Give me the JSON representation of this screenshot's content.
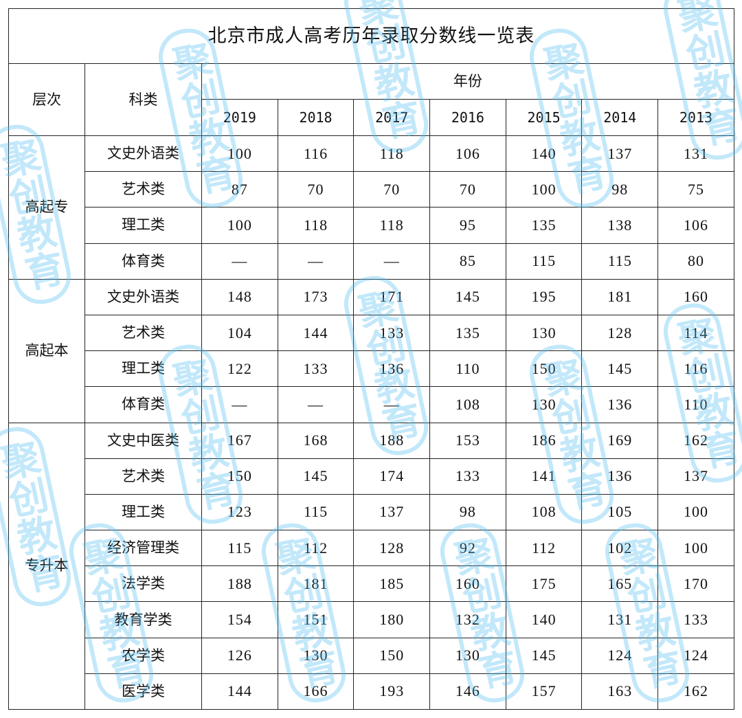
{
  "title": "北京市成人高考历年录取分数线一览表",
  "headers": {
    "level": "层次",
    "category": "科类",
    "year_group": "年份"
  },
  "years": [
    "2019",
    "2018",
    "2017",
    "2016",
    "2015",
    "2014",
    "2013"
  ],
  "groups": [
    {
      "level": "高起专",
      "rows": [
        {
          "category": "文史外语类",
          "scores": [
            "100",
            "116",
            "118",
            "106",
            "140",
            "137",
            "131"
          ]
        },
        {
          "category": "艺术类",
          "scores": [
            "87",
            "70",
            "70",
            "70",
            "100",
            "98",
            "75"
          ]
        },
        {
          "category": "理工类",
          "scores": [
            "100",
            "118",
            "118",
            "95",
            "135",
            "138",
            "106"
          ]
        },
        {
          "category": "体育类",
          "scores": [
            "—",
            "—",
            "—",
            "85",
            "115",
            "115",
            "80"
          ]
        }
      ]
    },
    {
      "level": "高起本",
      "rows": [
        {
          "category": "文史外语类",
          "scores": [
            "148",
            "173",
            "171",
            "145",
            "195",
            "181",
            "160"
          ]
        },
        {
          "category": "艺术类",
          "scores": [
            "104",
            "144",
            "133",
            "135",
            "130",
            "128",
            "114"
          ]
        },
        {
          "category": "理工类",
          "scores": [
            "122",
            "133",
            "136",
            "110",
            "150",
            "145",
            "116"
          ]
        },
        {
          "category": "体育类",
          "scores": [
            "—",
            "—",
            "—",
            "108",
            "130",
            "136",
            "110"
          ]
        }
      ]
    },
    {
      "level": "专升本",
      "rows": [
        {
          "category": "文史中医类",
          "scores": [
            "167",
            "168",
            "188",
            "153",
            "186",
            "169",
            "162"
          ]
        },
        {
          "category": "艺术类",
          "scores": [
            "150",
            "145",
            "174",
            "133",
            "141",
            "136",
            "137"
          ]
        },
        {
          "category": "理工类",
          "scores": [
            "123",
            "115",
            "137",
            "98",
            "108",
            "105",
            "100"
          ]
        },
        {
          "category": "经济管理类",
          "scores": [
            "115",
            "112",
            "128",
            "92",
            "112",
            "102",
            "100"
          ]
        },
        {
          "category": "法学类",
          "scores": [
            "188",
            "181",
            "185",
            "160",
            "175",
            "165",
            "170"
          ]
        },
        {
          "category": "教育学类",
          "scores": [
            "154",
            "151",
            "180",
            "132",
            "140",
            "131",
            "133"
          ]
        },
        {
          "category": "农学类",
          "scores": [
            "126",
            "130",
            "150",
            "130",
            "145",
            "124",
            "124"
          ]
        },
        {
          "category": "医学类",
          "scores": [
            "144",
            "166",
            "193",
            "146",
            "157",
            "163",
            "162"
          ]
        }
      ]
    }
  ],
  "watermark": {
    "text": "聚创教育",
    "color": "#5bc3f0"
  }
}
